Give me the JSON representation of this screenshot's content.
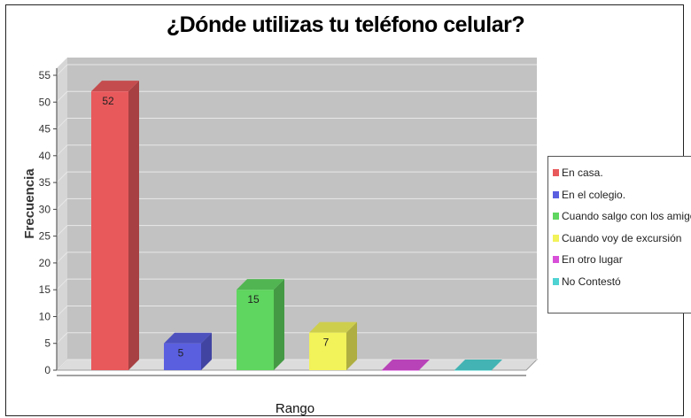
{
  "chart_data": {
    "type": "bar",
    "title": "¿Dónde utilizas tu teléfono celular?",
    "xlabel": "Rango",
    "ylabel": "Frecuencia",
    "ylim": [
      0,
      55
    ],
    "yticks": [
      0,
      5,
      10,
      15,
      20,
      25,
      30,
      35,
      40,
      45,
      50,
      55
    ],
    "grid": true,
    "legend_position": "right",
    "series": [
      {
        "name": "En casa.",
        "value": 52,
        "label": "52",
        "color": "#e8595c"
      },
      {
        "name": "En el colegio.",
        "value": 5,
        "label": "5",
        "color": "#5a5fe0"
      },
      {
        "name": "Cuando salgo con los amigos",
        "value": 15,
        "label": "15",
        "color": "#5fd65f"
      },
      {
        "name": "Cuando voy de excursión",
        "value": 7,
        "label": "7",
        "color": "#f2f25a"
      },
      {
        "name": "En otro lugar",
        "value": 0,
        "label": "",
        "color": "#d84fd8"
      },
      {
        "name": "No Contestó",
        "value": 0,
        "label": "",
        "color": "#4fd2d2"
      }
    ]
  }
}
